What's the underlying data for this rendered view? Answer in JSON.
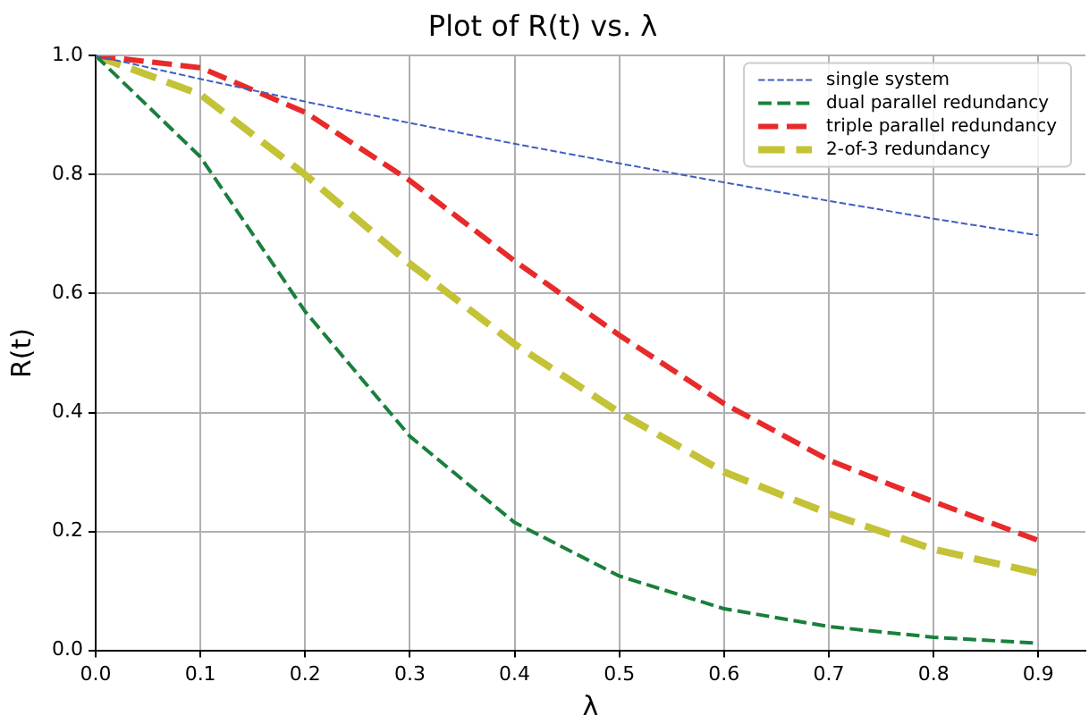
{
  "chart_data": {
    "type": "line",
    "title": "Plot of R(t) vs. λ",
    "xlabel": "λ",
    "ylabel": "R(t)",
    "x": [
      0,
      0.1,
      0.2,
      0.3,
      0.4,
      0.5,
      0.6,
      0.7,
      0.8,
      0.9
    ],
    "series": [
      {
        "name": "single system",
        "color": "#3f5fbf",
        "values": [
          1,
          0.961,
          0.923,
          0.887,
          0.852,
          0.819,
          0.787,
          0.756,
          0.726,
          0.698
        ]
      },
      {
        "name": "dual parallel redundancy",
        "color": "#1a7f3c",
        "values": [
          1,
          0.83,
          0.57,
          0.36,
          0.215,
          0.125,
          0.07,
          0.04,
          0.022,
          0.012
        ]
      },
      {
        "name": "triple parallel redundancy",
        "color": "#e82a2a",
        "values": [
          1,
          0.98,
          0.905,
          0.79,
          0.655,
          0.53,
          0.415,
          0.32,
          0.25,
          0.185
        ]
      },
      {
        "name": "2-of-3 redundancy",
        "color": "#c4c236",
        "values": [
          1,
          0.935,
          0.8,
          0.65,
          0.515,
          0.4,
          0.3,
          0.23,
          0.17,
          0.13
        ]
      }
    ],
    "xlim": [
      0,
      0.945
    ],
    "xticks": [
      {
        "value": 0,
        "label": "0.0"
      },
      0.1,
      0.2,
      0.3,
      0.4,
      0.5,
      0.6,
      0.7,
      0.8,
      0.9
    ],
    "ylim": [
      0,
      1
    ],
    "yticks": [
      {
        "value": 0,
        "label": "0.0"
      },
      0.2,
      0.4,
      0.6,
      0.8,
      {
        "value": 1,
        "label": "1.0"
      }
    ],
    "grid": true,
    "legend": "top right",
    "line_style": "dashed",
    "marker": "none"
  }
}
